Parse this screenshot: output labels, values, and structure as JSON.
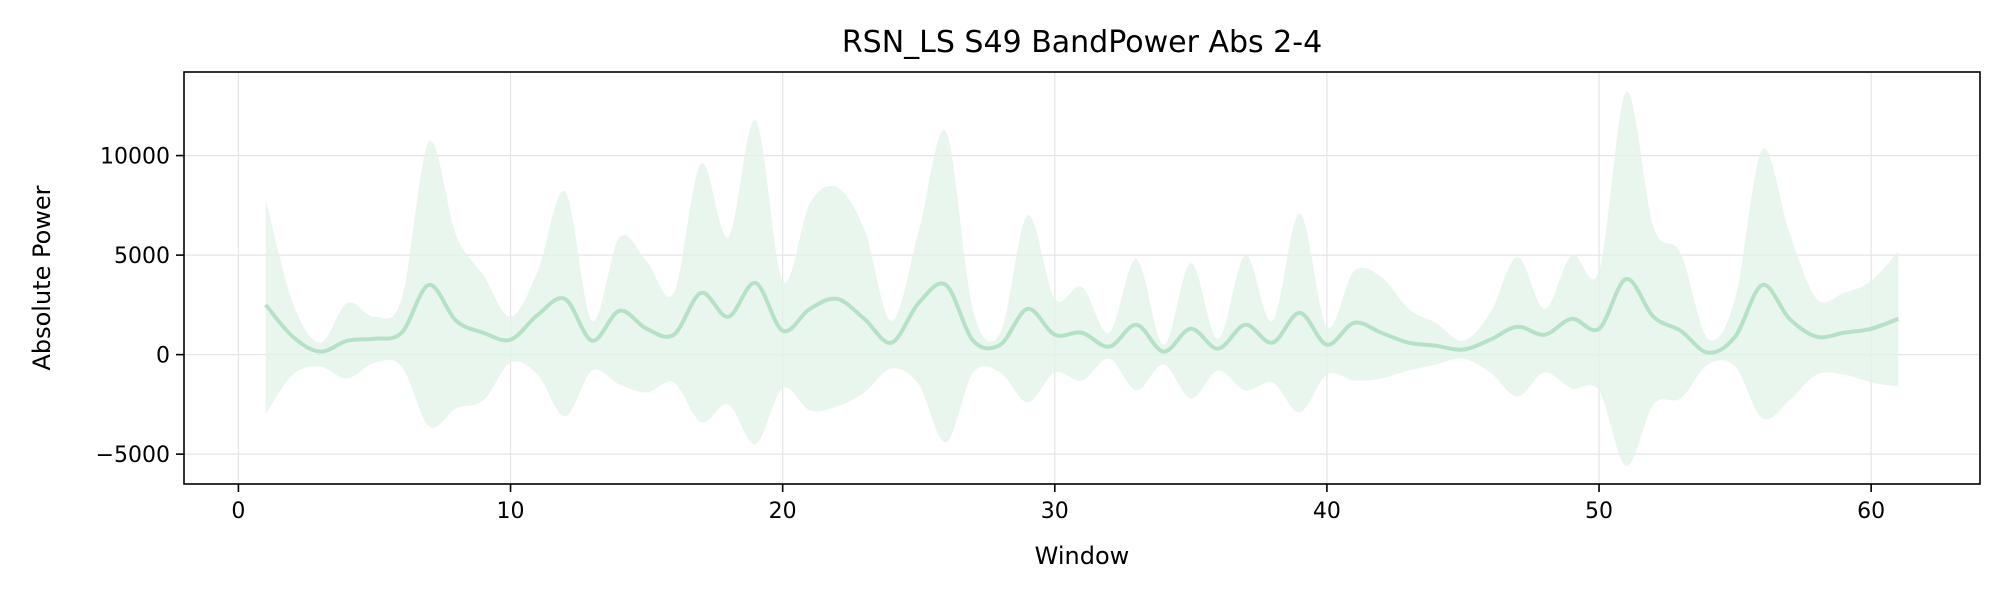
{
  "chart_data": {
    "type": "line",
    "title": "RSN_LS S49 BandPower Abs 2-4",
    "xlabel": "Window",
    "ylabel": "Absolute Power",
    "xlim": [
      -2,
      64
    ],
    "ylim": [
      -6500,
      14200
    ],
    "xticks": [
      0,
      10,
      20,
      30,
      40,
      50,
      60
    ],
    "yticks": [
      -5000,
      0,
      5000,
      10000
    ],
    "ytick_labels": [
      "−5000",
      "0",
      "5000",
      "10000"
    ],
    "grid": true,
    "legend": "none",
    "colors": {
      "line": "#b5e2c5",
      "band": "#e2f3e8",
      "grid": "#e5e5e5",
      "axes": "#000000"
    },
    "x": [
      1,
      2,
      3,
      4,
      5,
      6,
      7,
      8,
      9,
      10,
      11,
      12,
      13,
      14,
      15,
      16,
      17,
      18,
      19,
      20,
      21,
      22,
      23,
      24,
      25,
      26,
      27,
      28,
      29,
      30,
      31,
      32,
      33,
      34,
      35,
      36,
      37,
      38,
      39,
      40,
      41,
      42,
      43,
      44,
      45,
      46,
      47,
      48,
      49,
      50,
      51,
      52,
      53,
      54,
      55,
      56,
      57,
      58,
      59,
      60,
      61
    ],
    "series": [
      {
        "values": [
          2500,
          900,
          150,
          700,
          800,
          1100,
          3500,
          1700,
          1100,
          750,
          2000,
          2800,
          700,
          2200,
          1300,
          1000,
          3100,
          1900,
          3600,
          1200,
          2300,
          2800,
          1800,
          600,
          2600,
          3500,
          700,
          500,
          2300,
          1000,
          1100,
          400,
          1500,
          150,
          1300,
          300,
          1500,
          600,
          2100,
          500,
          1600,
          1100,
          600,
          450,
          250,
          750,
          1400,
          1000,
          1800,
          1300,
          3800,
          1900,
          1200,
          100,
          900,
          3500,
          1800,
          900,
          1100,
          1300,
          1800
        ],
        "upper": [
          7800,
          2600,
          600,
          2600,
          1900,
          2800,
          10700,
          6000,
          4000,
          1900,
          4200,
          8200,
          1700,
          5900,
          4700,
          3100,
          9600,
          5900,
          11800,
          3700,
          7600,
          8400,
          6300,
          1700,
          6200,
          11200,
          2200,
          1100,
          7000,
          2800,
          3400,
          1100,
          4800,
          500,
          4600,
          800,
          5000,
          1700,
          7100,
          1400,
          4200,
          3900,
          2300,
          1600,
          700,
          2100,
          4900,
          2300,
          5000,
          4200,
          13200,
          6400,
          5100,
          800,
          2800,
          10300,
          6100,
          2800,
          3100,
          3700,
          5200
        ],
        "lower": [
          -3000,
          -1000,
          -600,
          -1200,
          -400,
          -600,
          -3600,
          -2700,
          -2300,
          -400,
          -1000,
          -3100,
          -800,
          -1500,
          -1900,
          -1400,
          -3400,
          -2500,
          -4500,
          -1700,
          -2800,
          -2600,
          -1900,
          -700,
          -1500,
          -4400,
          -900,
          -900,
          -2400,
          -900,
          -1300,
          -200,
          -1800,
          -500,
          -2200,
          -800,
          -1800,
          -1400,
          -2900,
          -1000,
          -1300,
          -1200,
          -800,
          -500,
          -200,
          -900,
          -2100,
          -900,
          -1700,
          -1800,
          -5600,
          -2500,
          -2200,
          -500,
          -600,
          -3200,
          -2300,
          -1000,
          -1000,
          -1400,
          -1600
        ]
      }
    ]
  }
}
